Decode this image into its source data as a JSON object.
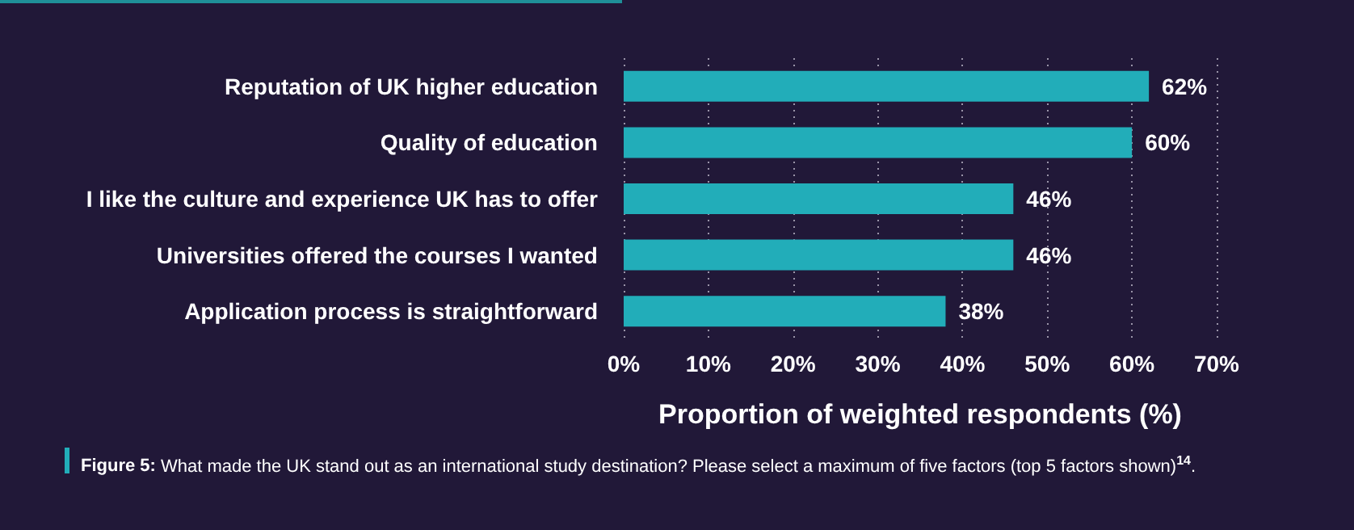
{
  "chart_data": {
    "type": "bar",
    "orientation": "horizontal",
    "categories": [
      "Reputation of UK higher education",
      "Quality of education",
      "I like the culture and experience UK has to offer",
      "Universities offered the courses I wanted",
      "Application process is straightforward"
    ],
    "values": [
      62,
      60,
      46,
      46,
      38
    ],
    "color": "#22adb9",
    "value_labels": [
      "62%",
      "60%",
      "46%",
      "46%",
      "38%"
    ],
    "xlim": [
      0,
      70
    ],
    "xticks": [
      {
        "value": 0,
        "label": "0%"
      },
      {
        "value": 10,
        "label": "10%"
      },
      {
        "value": 20,
        "label": "20%"
      },
      {
        "value": 30,
        "label": "30%"
      },
      {
        "value": 40,
        "label": "40%"
      },
      {
        "value": 50,
        "label": "50%"
      },
      {
        "value": 60,
        "label": "60%"
      },
      {
        "value": 70,
        "label": "70%"
      }
    ],
    "xlabel": "Proportion of weighted respondents (%)",
    "grid": "x",
    "annotations": [
      "Figure 5: What made the UK stand out as an international study destination? Please select a maximum of five factors (top 5 factors shown)$^{14}$."
    ]
  }
}
